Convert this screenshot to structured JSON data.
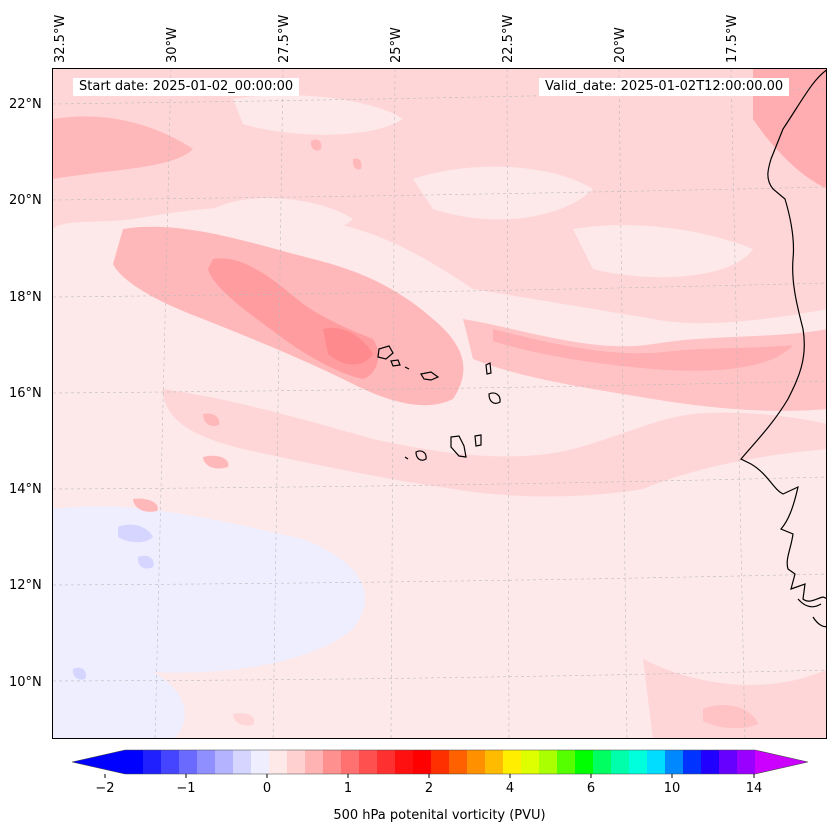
{
  "map": {
    "start_date": "Start date: 2025-01-02_00:00:00",
    "valid_date": "Valid_date: 2025-01-02T12:00:00.00",
    "lon_labels": [
      "32.5°W",
      "30°W",
      "27.5°W",
      "25°W",
      "22.5°W",
      "20°W",
      "17.5°W"
    ],
    "lat_labels": [
      "22°N",
      "20°N",
      "18°N",
      "16°N",
      "14°N",
      "12°N",
      "10°N"
    ],
    "colors": {
      "coast": "#000000",
      "grid": "#bbbbbb"
    }
  },
  "colorbar": {
    "label": "500 hPa potenital vorticity (PVU)",
    "tick_labels": [
      "−2",
      "−1",
      "0",
      "1",
      "2",
      "4",
      "6",
      "10",
      "14"
    ],
    "colors": [
      "#0000ff",
      "#2020ff",
      "#4545ff",
      "#6a6aff",
      "#8f8fff",
      "#b3b3ff",
      "#d5d5ff",
      "#eeeeff",
      "#ffe8e8",
      "#ffd0d0",
      "#ffb3b3",
      "#ff9090",
      "#ff7070",
      "#ff5050",
      "#ff3030",
      "#ff1010",
      "#ff0000",
      "#ff3000",
      "#ff6000",
      "#ff9000",
      "#ffbb00",
      "#ffee00",
      "#ddff00",
      "#aaff00",
      "#55ff00",
      "#00ff00",
      "#00ff60",
      "#00ffaa",
      "#00ffdd",
      "#00ddff",
      "#0088ff",
      "#0033ff",
      "#2200ff",
      "#6600ff",
      "#9900ff"
    ],
    "under_color": "#0000ff",
    "over_color": "#cc00ff"
  }
}
